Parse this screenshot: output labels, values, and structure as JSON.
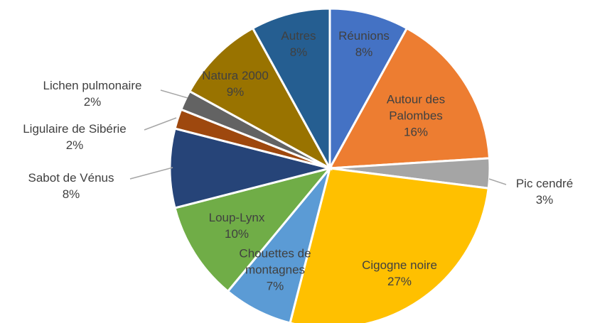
{
  "chart_data": {
    "type": "pie",
    "categories": [
      "Réunions",
      "Autour des Palombes",
      "Pic cendré",
      "Cigogne noire",
      "Chouettes de montagnes",
      "Loup-Lynx",
      "Sabot de Vénus",
      "Ligulaire de Sibérie",
      "Lichen pulmonaire",
      "Natura 2000",
      "Autres"
    ],
    "values": [
      8,
      16,
      3,
      27,
      7,
      10,
      8,
      2,
      2,
      9,
      8
    ],
    "value_labels": [
      "8%",
      "16%",
      "3%",
      "27%",
      "7%",
      "10%",
      "8%",
      "2%",
      "2%",
      "9%",
      "8%"
    ],
    "colors": [
      "#4472c4",
      "#ed7d31",
      "#a5a5a5",
      "#ffc000",
      "#5b9bd5",
      "#70ad47",
      "#264478",
      "#9e480e",
      "#636363",
      "#997300",
      "#255e91"
    ]
  }
}
